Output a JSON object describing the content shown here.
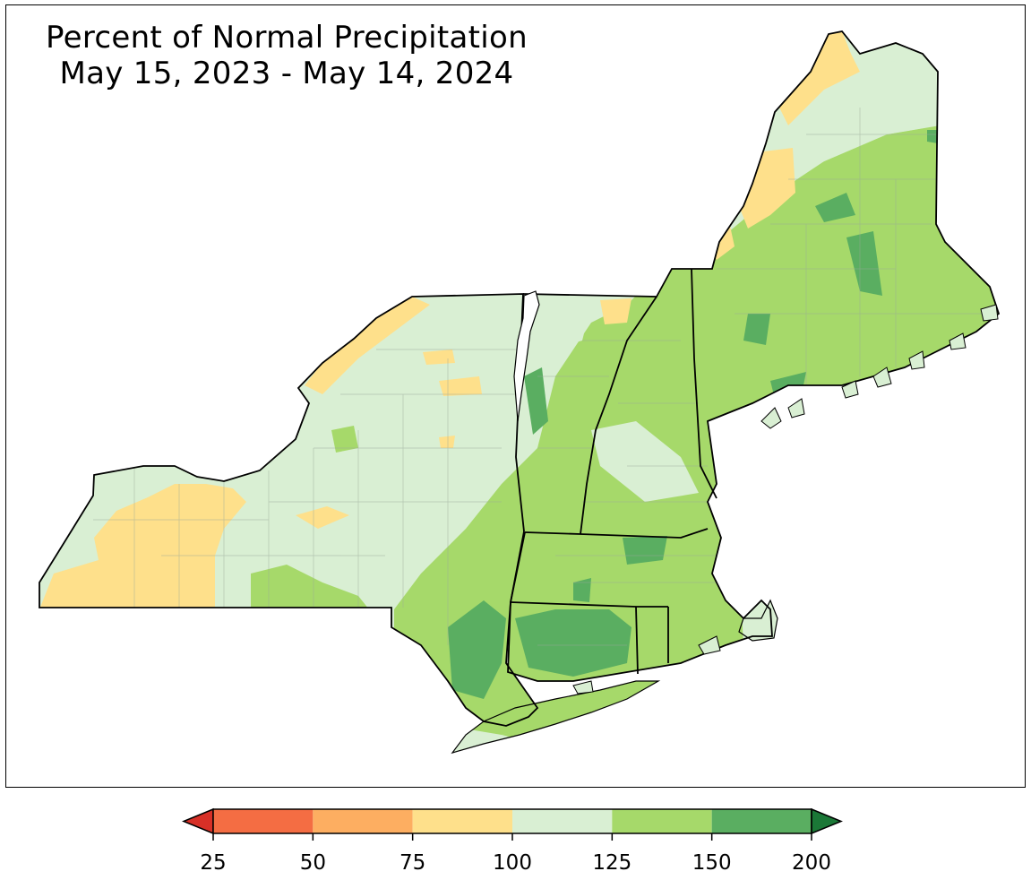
{
  "title": {
    "line1": "Percent of Normal Precipitation",
    "line2": "May 15, 2023 - May 14, 2024"
  },
  "legend": {
    "type": "colorbar",
    "extend": "both",
    "ticks": [
      "25",
      "50",
      "75",
      "100",
      "125",
      "150",
      "200"
    ],
    "bins": [
      {
        "from": null,
        "to": 25,
        "color": "#d73027"
      },
      {
        "from": 25,
        "to": 50,
        "color": "#f46d43"
      },
      {
        "from": 50,
        "to": 75,
        "color": "#fdae61"
      },
      {
        "from": 75,
        "to": 100,
        "color": "#fee08b"
      },
      {
        "from": 100,
        "to": 125,
        "color": "#d9efd3"
      },
      {
        "from": 125,
        "to": 150,
        "color": "#a6d96a"
      },
      {
        "from": 150,
        "to": 200,
        "color": "#5aae61"
      },
      {
        "from": 200,
        "to": null,
        "color": "#1b7837"
      }
    ]
  },
  "map": {
    "region": "Northeast United States",
    "colors": {
      "range_75_100": "#fee08b",
      "range_100_125": "#d9efd3",
      "range_125_150": "#a6d96a",
      "range_150_200": "#5aae61",
      "border": "#000000",
      "county_lines": "#9aa89a"
    }
  }
}
